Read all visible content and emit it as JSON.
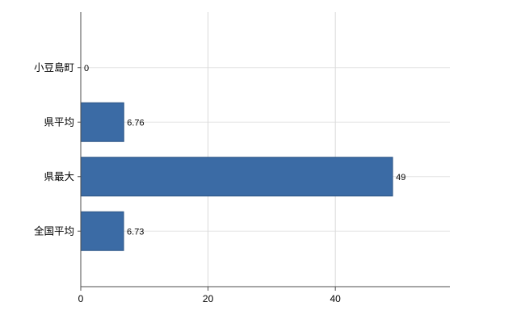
{
  "chart_data": {
    "type": "bar",
    "orientation": "horizontal",
    "categories": [
      "小豆島町",
      "県平均",
      "県最大",
      "全国平均"
    ],
    "values": [
      0,
      6.76,
      49,
      6.73
    ],
    "value_labels": [
      "0",
      "6.76",
      "49",
      "6.73"
    ],
    "xticks": [
      0,
      20,
      40
    ],
    "xlim": [
      0,
      58
    ],
    "grid": true,
    "legend_position": "none",
    "colors": {
      "bar_fill": "#3b6ba5",
      "bar_border": "#2d5585",
      "vertical_grid": "#d9d9d9",
      "horizontal_grid": "#e4e4e4",
      "axis": "#4d4d4d",
      "text": "#000000"
    }
  }
}
